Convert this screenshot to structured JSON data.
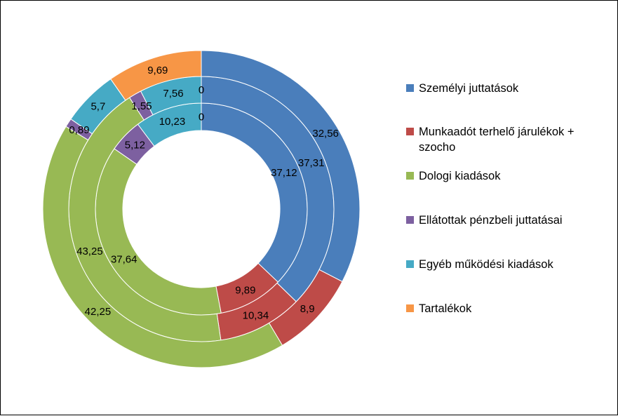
{
  "chart_data": {
    "type": "pie",
    "variant": "doughnut",
    "title": "",
    "categories": [
      "Személyi juttatások",
      "Munkaadót terhelő járulékok + szocho",
      "Dologi kiadások",
      "Ellátottak pénzbeli juttatásai",
      "Egyéb működési kiadások",
      "Tartalékok"
    ],
    "colors": [
      "#4A7EBB",
      "#BE4B48",
      "#98B954",
      "#7D60A0",
      "#46AAC5",
      "#F79646"
    ],
    "series": [
      {
        "values": [
          37.12,
          9.89,
          37.64,
          5.12,
          10.23,
          0
        ]
      },
      {
        "values": [
          37.31,
          10.34,
          43.25,
          1.55,
          7.56,
          0
        ]
      },
      {
        "values": [
          32.56,
          8.9,
          42.25,
          0.89,
          5.7,
          9.69
        ]
      }
    ],
    "value_labels": [
      [
        "37,12",
        "9,89",
        "37,64",
        "5,12",
        "10,23",
        "0"
      ],
      [
        "37,31",
        "10,34",
        "43,25",
        "1,55",
        "7,56",
        "0"
      ],
      [
        "32,56",
        "8,9",
        "42,25",
        "0,89",
        "5,7",
        "9,69"
      ]
    ],
    "legend_position": "right"
  }
}
